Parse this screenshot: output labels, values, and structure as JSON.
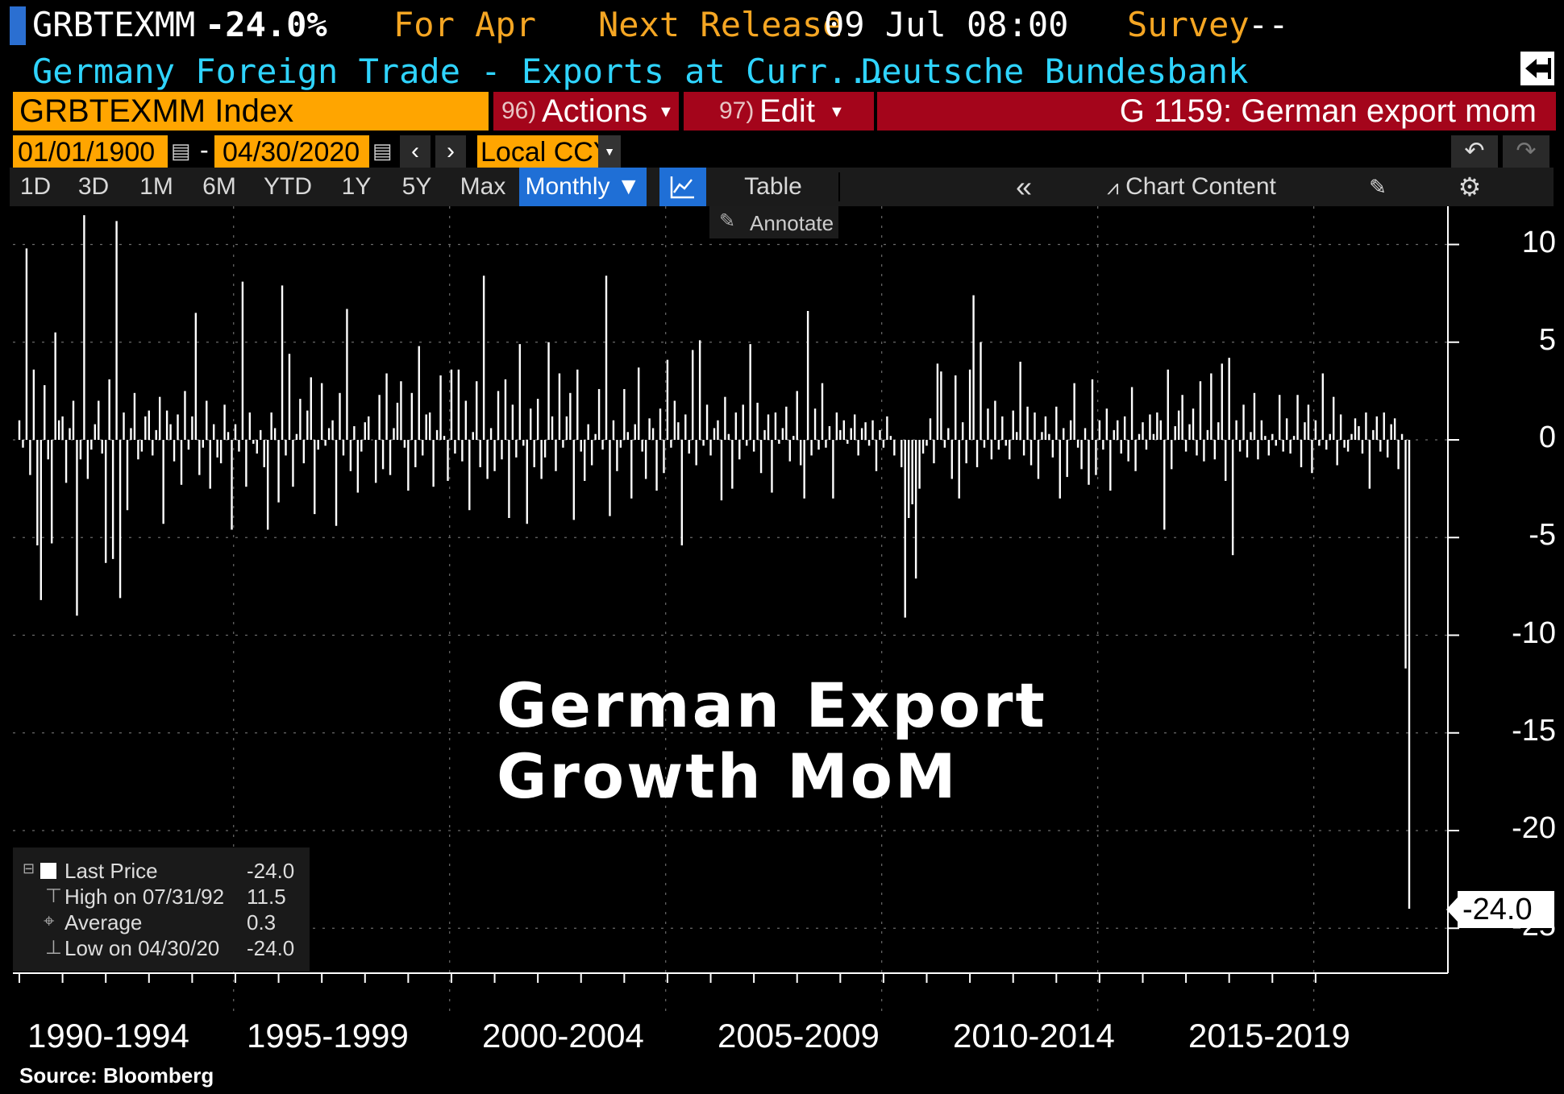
{
  "header": {
    "ticker": "GRBTEXMM",
    "last_change": "-24.0%",
    "for_label": "For Apr",
    "next_release_label": "Next Release",
    "next_release_value": "09 Jul 08:00",
    "survey_label": "Survey",
    "survey_value": "--",
    "description": "Germany Foreign Trade - Exports at Curr...",
    "source_org": "Deutsche Bundesbank"
  },
  "command_bar": {
    "security": "GRBTEXMM Index",
    "actions_num": "96)",
    "actions_label": "Actions",
    "edit_num": "97)",
    "edit_label": "Edit",
    "chart_title": "G 1159: German export mom"
  },
  "date_bar": {
    "start_date": "01/01/1900",
    "dash": "-",
    "end_date": "04/30/2020",
    "currency": "Local CCY"
  },
  "toolbar": {
    "periods": [
      "1D",
      "3D",
      "1M",
      "6M",
      "YTD",
      "1Y",
      "5Y",
      "Max"
    ],
    "frequency": "Monthly",
    "table_label": "Table",
    "chart_content_label": "Chart Content",
    "annotate_label": "Annotate"
  },
  "colors": {
    "orange": "#ffa500",
    "amber_text": "#f5a623",
    "cyan_text": "#2fd4ff",
    "command_red": "#a4051b",
    "toolbar_active_blue": "#1f6fd6",
    "bars": "#ffffff"
  },
  "legend": {
    "items": [
      {
        "label": "Last Price",
        "value": "-24.0"
      },
      {
        "label": "High on 07/31/92",
        "value": "11.5"
      },
      {
        "label": "Average",
        "value": "0.3"
      },
      {
        "label": "Low on 04/30/20",
        "value": "-24.0"
      }
    ]
  },
  "last_value_tag": "-24.0",
  "overlay_title_line1": "German Export",
  "overlay_title_line2": "Growth MoM",
  "footer_source": "Source: Bloomberg",
  "chart_data": {
    "type": "bar",
    "frequency": "monthly",
    "start": "1990-01",
    "end": "2020-04",
    "y_ticks": [
      "10",
      "5",
      "0",
      "-5",
      "-10",
      "-15",
      "-20",
      "-25"
    ],
    "ylim": [
      -25,
      12
    ],
    "x_period_labels": [
      "1990-1994",
      "1995-1999",
      "2000-2004",
      "2005-2009",
      "2010-2014",
      "2015-2019"
    ],
    "grid": true,
    "legend_position": "bottom-left",
    "high": {
      "date": "07/31/92",
      "value": 11.5
    },
    "low": {
      "date": "04/30/20",
      "value": -24.0
    },
    "average": 0.3,
    "last": -24.0,
    "values": [
      1.0,
      -0.4,
      9.8,
      -1.8,
      3.6,
      -5.4,
      -8.2,
      2.8,
      -1.0,
      -5.3,
      5.5,
      1.0,
      1.2,
      -2.2,
      0.6,
      2.0,
      -9.0,
      -1.0,
      11.5,
      -2.0,
      -0.5,
      0.8,
      2.0,
      -0.7,
      -6.3,
      3.1,
      -6.1,
      11.2,
      -8.1,
      1.4,
      -3.6,
      0.6,
      2.4,
      -1.0,
      -0.6,
      1.2,
      1.5,
      -0.8,
      0.5,
      2.2,
      -4.3,
      1.5,
      0.8,
      -1.1,
      1.3,
      -2.3,
      2.5,
      -0.5,
      1.2,
      6.5,
      -1.8,
      -0.4,
      2.0,
      -2.5,
      0.8,
      -0.9,
      -1.2,
      1.8,
      0.4,
      -4.6,
      0.8,
      -0.6,
      8.1,
      -2.4,
      1.4,
      -0.2,
      -0.7,
      0.5,
      -1.4,
      -4.6,
      1.4,
      0.6,
      -3.2,
      7.9,
      -0.8,
      4.4,
      -2.4,
      0.3,
      2.1,
      -1.2,
      1.5,
      3.2,
      -3.8,
      -0.5,
      2.9,
      -0.3,
      0.6,
      1.0,
      -4.4,
      2.4,
      -0.8,
      6.7,
      -1.6,
      0.7,
      -2.7,
      -0.6,
      0.9,
      1.2,
      0.0,
      -2.2,
      2.3,
      -1.5,
      3.4,
      -1.8,
      0.6,
      1.9,
      3.0,
      -0.4,
      -2.6,
      2.4,
      -1.4,
      4.8,
      -0.8,
      1.3,
      1.4,
      -2.4,
      0.5,
      3.3,
      0.2,
      -2.1,
      3.6,
      -0.7,
      3.6,
      -1.1,
      2.0,
      -3.6,
      0.4,
      3.0,
      -1.4,
      8.4,
      -2.0,
      0.6,
      -1.6,
      2.5,
      -1.0,
      3.1,
      -4.0,
      1.8,
      -0.9,
      4.9,
      -0.3,
      -4.3,
      1.6,
      -1.4,
      2.1,
      -2.0,
      -0.9,
      5.0,
      1.2,
      -1.6,
      3.4,
      -0.4,
      1.2,
      2.4,
      -4.1,
      3.6,
      -0.6,
      -2.1,
      0.8,
      -1.3,
      0.3,
      2.6,
      -0.5,
      8.4,
      -3.9,
      1.0,
      -1.6,
      -0.4,
      2.6,
      0.4,
      -3.0,
      0.8,
      3.7,
      -0.6,
      -2.0,
      1.1,
      0.6,
      -2.6,
      1.6,
      -1.7,
      4.1,
      -0.4,
      2.0,
      0.9,
      -5.4,
      1.3,
      -0.7,
      4.6,
      -1.3,
      5.1,
      -0.3,
      1.8,
      -0.8,
      0.6,
      1.0,
      -3.1,
      2.2,
      0.3,
      -2.5,
      1.4,
      -1.0,
      1.8,
      -0.3,
      4.9,
      -0.6,
      1.9,
      -1.7,
      0.5,
      1.3,
      -2.7,
      1.4,
      -0.2,
      0.6,
      1.7,
      -1.1,
      0.2,
      2.5,
      -1.3,
      -3.0,
      6.6,
      -0.8,
      1.6,
      -0.5,
      2.9,
      -0.4,
      0.7,
      -3.0,
      1.4,
      0.5,
      1.0,
      -0.2,
      0.6,
      1.3,
      -0.8,
      0.6,
      0.9,
      -0.3,
      1.0,
      -1.6,
      0.5,
      -0.4,
      1.2,
      0.2,
      -0.8,
      0.0,
      -1.4,
      -9.1,
      -4.0,
      -3.3,
      -7.1,
      -2.5,
      -0.7,
      -0.3,
      1.1,
      -1.2,
      3.9,
      3.5,
      -0.4,
      0.6,
      -2.0,
      3.3,
      -3.0,
      0.9,
      -1.2,
      3.6,
      7.4,
      -1.4,
      5.0,
      -0.4,
      1.6,
      -1.0,
      2.0,
      -0.5,
      1.2,
      -0.3,
      -1.0,
      1.5,
      0.4,
      4.0,
      -0.8,
      1.7,
      -1.3,
      1.4,
      -2.0,
      0.4,
      1.2,
      0.3,
      -0.9,
      1.7,
      -3.0,
      0.6,
      -1.9,
      1.0,
      2.9,
      -0.4,
      -1.5,
      0.6,
      -2.3,
      3.1,
      -1.8,
      1.0,
      -0.5,
      1.6,
      -2.6,
      0.5,
      1.0,
      -0.7,
      1.2,
      -1.1,
      2.7,
      -1.6,
      0.3,
      0.9,
      -0.5,
      1.3,
      0.3,
      1.4,
      1.0,
      -4.6,
      3.6,
      -1.5,
      0.7,
      1.5,
      2.3,
      -0.6,
      0.8,
      1.6,
      -0.8,
      3.0,
      -1.1,
      0.5,
      3.4,
      -1.0,
      0.9,
      3.9,
      -2.1,
      4.2,
      -5.9,
      1.0,
      -0.6,
      1.8,
      -0.9,
      0.4,
      2.4,
      -1.0,
      1.0,
      0.2,
      -0.8,
      0.3,
      -0.3,
      2.3,
      -0.6,
      1.1,
      -0.7,
      0.2,
      2.3,
      -1.4,
      0.9,
      1.8,
      -1.7,
      1.0,
      -0.3,
      3.4,
      -0.5,
      0.3,
      2.2,
      -1.3,
      1.3,
      -0.4,
      -0.6,
      0.3,
      1.1,
      0.7,
      -0.7,
      1.4,
      -2.5,
      0.5,
      1.2,
      -0.6,
      1.4,
      -0.9,
      0.8,
      1.1,
      -1.5,
      0.3,
      -11.7,
      -24.0
    ]
  }
}
